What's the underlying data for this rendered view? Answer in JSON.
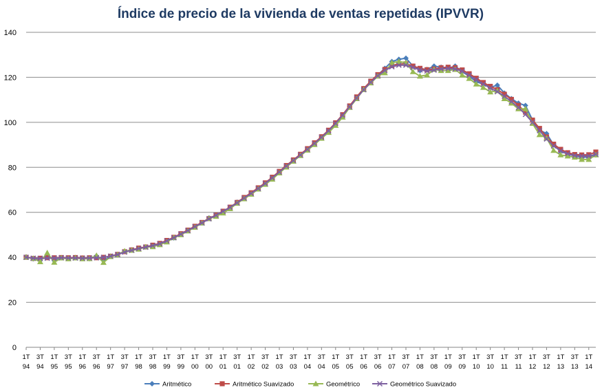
{
  "chart_data": {
    "type": "line",
    "title": "Índice de precio de la vivienda de ventas repetidas (IPVVR)",
    "xlabel": "",
    "ylabel": "",
    "ylim": [
      0,
      140
    ],
    "yticks": [
      0,
      20,
      40,
      60,
      80,
      100,
      120,
      140
    ],
    "grid": true,
    "legend_position": "bottom",
    "categories": [
      "1T94",
      "2T94",
      "3T94",
      "4T94",
      "1T95",
      "2T95",
      "3T95",
      "4T95",
      "1T96",
      "2T96",
      "3T96",
      "4T96",
      "1T97",
      "2T97",
      "3T97",
      "4T97",
      "1T98",
      "2T98",
      "3T98",
      "4T98",
      "1T99",
      "2T99",
      "3T99",
      "4T99",
      "1T00",
      "2T00",
      "3T00",
      "4T00",
      "1T01",
      "2T01",
      "3T01",
      "4T01",
      "1T02",
      "2T02",
      "3T02",
      "4T02",
      "1T03",
      "2T03",
      "3T03",
      "4T03",
      "1T04",
      "2T04",
      "3T04",
      "4T04",
      "1T05",
      "2T05",
      "3T05",
      "4T05",
      "1T06",
      "2T06",
      "3T06",
      "4T06",
      "1T07",
      "2T07",
      "3T07",
      "4T07",
      "1T08",
      "2T08",
      "3T08",
      "4T08",
      "1T09",
      "2T09",
      "3T09",
      "4T09",
      "1T10",
      "2T10",
      "3T10",
      "4T10",
      "1T11",
      "2T11",
      "3T11",
      "4T11",
      "1T12",
      "2T12",
      "3T12",
      "4T12",
      "1T13",
      "2T13",
      "3T13",
      "4T13",
      "1T14",
      "2T14"
    ],
    "x_tick_labels": [
      {
        "index": 0,
        "q": "1T",
        "y": "94"
      },
      {
        "index": 2,
        "q": "3T",
        "y": "94"
      },
      {
        "index": 4,
        "q": "1T",
        "y": "95"
      },
      {
        "index": 6,
        "q": "3T",
        "y": "95"
      },
      {
        "index": 8,
        "q": "1T",
        "y": "96"
      },
      {
        "index": 10,
        "q": "3T",
        "y": "96"
      },
      {
        "index": 12,
        "q": "1T",
        "y": "97"
      },
      {
        "index": 14,
        "q": "3T",
        "y": "97"
      },
      {
        "index": 16,
        "q": "1T",
        "y": "98"
      },
      {
        "index": 18,
        "q": "3T",
        "y": "98"
      },
      {
        "index": 20,
        "q": "1T",
        "y": "99"
      },
      {
        "index": 22,
        "q": "3T",
        "y": "99"
      },
      {
        "index": 24,
        "q": "1T",
        "y": "00"
      },
      {
        "index": 26,
        "q": "3T",
        "y": "00"
      },
      {
        "index": 28,
        "q": "1T",
        "y": "01"
      },
      {
        "index": 30,
        "q": "3T",
        "y": "01"
      },
      {
        "index": 32,
        "q": "1T",
        "y": "02"
      },
      {
        "index": 34,
        "q": "3T",
        "y": "02"
      },
      {
        "index": 36,
        "q": "1T",
        "y": "03"
      },
      {
        "index": 38,
        "q": "3T",
        "y": "03"
      },
      {
        "index": 40,
        "q": "1T",
        "y": "04"
      },
      {
        "index": 42,
        "q": "3T",
        "y": "04"
      },
      {
        "index": 44,
        "q": "1T",
        "y": "05"
      },
      {
        "index": 46,
        "q": "3T",
        "y": "05"
      },
      {
        "index": 48,
        "q": "1T",
        "y": "06"
      },
      {
        "index": 50,
        "q": "3T",
        "y": "06"
      },
      {
        "index": 52,
        "q": "1T",
        "y": "07"
      },
      {
        "index": 54,
        "q": "3T",
        "y": "07"
      },
      {
        "index": 56,
        "q": "1T",
        "y": "08"
      },
      {
        "index": 58,
        "q": "3T",
        "y": "08"
      },
      {
        "index": 60,
        "q": "1T",
        "y": "09"
      },
      {
        "index": 62,
        "q": "3T",
        "y": "09"
      },
      {
        "index": 64,
        "q": "1T",
        "y": "10"
      },
      {
        "index": 66,
        "q": "3T",
        "y": "10"
      },
      {
        "index": 68,
        "q": "1T",
        "y": "11"
      },
      {
        "index": 70,
        "q": "3T",
        "y": "11"
      },
      {
        "index": 72,
        "q": "1T",
        "y": "12"
      },
      {
        "index": 74,
        "q": "3T",
        "y": "12"
      },
      {
        "index": 76,
        "q": "1T",
        "y": "13"
      },
      {
        "index": 78,
        "q": "3T",
        "y": "13"
      },
      {
        "index": 80,
        "q": "1T",
        "y": "14"
      }
    ],
    "series": [
      {
        "name": "Aritmético",
        "color": "#4a7ebb",
        "marker": "diamond",
        "values": [
          40.2,
          39.3,
          38.6,
          41.2,
          38.5,
          39.8,
          39.6,
          39.9,
          39.7,
          39.4,
          40.6,
          38.5,
          40.5,
          41.3,
          42.6,
          43.3,
          43.9,
          44.6,
          45.1,
          45.9,
          47.1,
          48.6,
          50.4,
          52.0,
          53.7,
          55.3,
          57.5,
          58.5,
          60.0,
          62.0,
          64.5,
          66.5,
          68.5,
          70.7,
          72.8,
          75.3,
          77.9,
          80.6,
          83.2,
          85.6,
          88.0,
          90.7,
          93.5,
          96.2,
          99.5,
          103.0,
          107.0,
          111.0,
          115.0,
          118.0,
          121.0,
          124.0,
          127.0,
          128.0,
          128.5,
          125.0,
          123.0,
          123.5,
          125.0,
          124.5,
          124.0,
          125.0,
          122.5,
          120.5,
          118.0,
          117.0,
          115.5,
          116.5,
          113.0,
          110.5,
          108.5,
          107.5,
          101.0,
          96.5,
          95.0,
          90.0,
          87.0,
          86.0,
          85.0,
          84.5,
          84.5,
          85.5
        ]
      },
      {
        "name": "Aritmético Suavizado",
        "color": "#be4b48",
        "marker": "square",
        "values": [
          40.0,
          39.5,
          39.6,
          39.8,
          39.8,
          39.9,
          39.8,
          39.9,
          39.7,
          39.8,
          39.8,
          40.0,
          40.5,
          41.3,
          42.5,
          43.3,
          44.1,
          44.6,
          45.4,
          46.2,
          47.5,
          48.9,
          50.5,
          52.1,
          53.8,
          55.5,
          57.2,
          58.8,
          60.5,
          62.3,
          64.4,
          66.6,
          68.7,
          70.9,
          73.1,
          75.6,
          78.2,
          80.8,
          83.3,
          85.8,
          88.3,
          90.9,
          93.6,
          96.5,
          99.8,
          103.4,
          107.3,
          111.3,
          115.0,
          118.3,
          121.2,
          123.5,
          125.2,
          126.0,
          126.0,
          125.0,
          124.0,
          123.4,
          123.7,
          124.3,
          124.5,
          124.3,
          123.3,
          121.6,
          119.6,
          117.7,
          116.0,
          114.5,
          112.5,
          110.2,
          107.5,
          104.5,
          101.0,
          97.3,
          93.5,
          90.3,
          88.0,
          86.5,
          85.7,
          85.5,
          85.6,
          86.8
        ]
      },
      {
        "name": "Geométrico",
        "color": "#98b954",
        "marker": "triangle",
        "values": [
          40.0,
          39.5,
          38.0,
          42.0,
          37.8,
          39.7,
          39.3,
          39.7,
          39.3,
          39.4,
          40.8,
          37.7,
          40.3,
          41.1,
          42.8,
          43.1,
          43.6,
          44.6,
          44.7,
          45.6,
          46.8,
          48.7,
          50.0,
          51.7,
          53.3,
          55.2,
          57.2,
          58.2,
          59.7,
          61.6,
          64.0,
          66.0,
          68.0,
          70.3,
          72.4,
          74.7,
          77.5,
          80.1,
          82.7,
          85.2,
          87.6,
          90.1,
          92.9,
          95.5,
          98.6,
          102.3,
          106.6,
          110.5,
          114.5,
          117.5,
          120.5,
          122.0,
          126.5,
          127.0,
          126.5,
          122.5,
          120.5,
          121.0,
          123.5,
          123.0,
          123.0,
          123.5,
          121.0,
          119.5,
          117.0,
          115.5,
          113.5,
          114.0,
          110.5,
          108.5,
          106.0,
          106.0,
          99.5,
          94.5,
          93.0,
          87.5,
          85.5,
          85.0,
          84.5,
          83.5,
          83.5,
          85.5
        ]
      },
      {
        "name": "Geométrico Suavizado",
        "color": "#7d60a0",
        "marker": "x",
        "values": [
          40.0,
          39.6,
          39.5,
          39.6,
          39.7,
          39.8,
          39.7,
          39.7,
          39.6,
          39.7,
          39.8,
          40.0,
          40.5,
          41.2,
          42.3,
          43.1,
          43.9,
          44.5,
          45.2,
          46.0,
          47.3,
          48.7,
          50.3,
          51.9,
          53.6,
          55.3,
          57.1,
          58.7,
          60.4,
          62.2,
          64.2,
          66.3,
          68.4,
          70.6,
          72.8,
          75.3,
          77.9,
          80.5,
          83.0,
          85.5,
          88.0,
          90.6,
          93.3,
          96.2,
          99.5,
          103.1,
          106.9,
          110.8,
          114.5,
          117.8,
          120.7,
          123.0,
          124.7,
          125.4,
          125.4,
          124.4,
          123.3,
          122.8,
          123.2,
          123.7,
          123.9,
          123.7,
          122.7,
          120.9,
          119.0,
          117.0,
          115.2,
          113.6,
          111.6,
          109.2,
          106.6,
          103.5,
          100.0,
          96.3,
          92.6,
          89.5,
          87.3,
          86.0,
          85.2,
          85.0,
          85.0,
          85.8
        ]
      }
    ]
  }
}
